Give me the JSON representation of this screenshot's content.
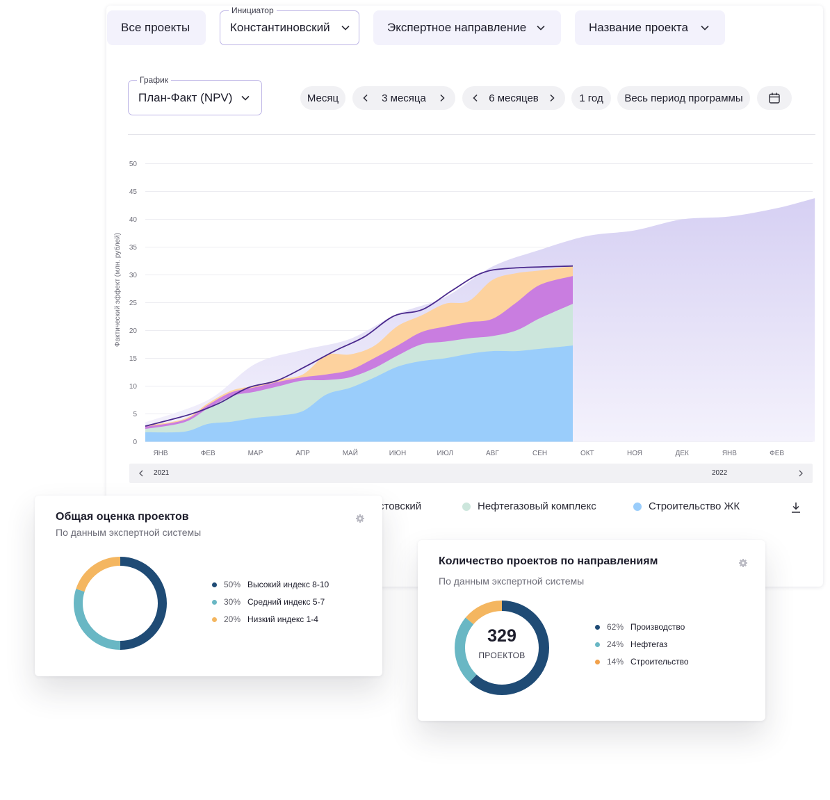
{
  "filters": {
    "all_projects": "Все проекты",
    "initiator_label": "Инициатор",
    "initiator_value": "Константиновский",
    "expert_direction": "Экспертное направление",
    "project_name": "Название проекта"
  },
  "graph_selector": {
    "label": "График",
    "value": "План-Факт (NPV)"
  },
  "period": {
    "month": "Месяц",
    "three_months": "3 месяца",
    "six_months": "6 месяцев",
    "one_year": "1 год",
    "whole_period": "Весь период программы"
  },
  "chart": {
    "ylabel": "Фактический эффект (млн. рублей)",
    "timeline_left": "2021",
    "timeline_right": "2022"
  },
  "legend": {
    "item1": "стовский",
    "item2": "Нефтегазовый комплекс",
    "item3": "Строительство ЖК"
  },
  "colors": {
    "construction": "#9acdfb",
    "oil_gas": "#cce6dc",
    "magenta": "#c97de0",
    "orange": "#fdd29e",
    "plan": "#dcd7f4",
    "fact_line": "#4b2a8e",
    "navy": "#1f4b75",
    "teal": "#69b7c4",
    "yellow": "#f4b660",
    "orange2": "#f2a14a"
  },
  "chart_data": {
    "type": "area",
    "ylabel": "Фактический эффект (млн. рублей)",
    "ylim": [
      0,
      50
    ],
    "yticks": [
      0,
      5,
      10,
      15,
      20,
      25,
      30,
      35,
      40,
      45,
      50
    ],
    "months": [
      "ЯНВ",
      "ФЕВ",
      "МАР",
      "АПР",
      "МАЙ",
      "ИЮН",
      "ИЮЛ",
      "АВГ",
      "СЕН",
      "ОКТ",
      "НОЯ",
      "ДЕК",
      "ЯНВ",
      "ФЕВ"
    ],
    "x": [
      0,
      0.5,
      1,
      1.5,
      2,
      2.5,
      3,
      3.5,
      4,
      4.5,
      5,
      5.5,
      6,
      6.5,
      7,
      7.5,
      8,
      8.5
    ],
    "series": [
      {
        "values": [
          1.7,
          1.8,
          3.2,
          3.6,
          4.3,
          4.7,
          5.5,
          8.5,
          9.7,
          11.5,
          13.5,
          14.5,
          15.0,
          15.8,
          16.3,
          16.3,
          16.7,
          17.3
        ]
      },
      {
        "values": [
          0.6,
          1.7,
          2.8,
          4.6,
          4.7,
          5.3,
          5.5,
          2.6,
          1.9,
          1.7,
          2.0,
          3.0,
          3.0,
          2.8,
          2.7,
          3.7,
          5.5,
          7.5
        ]
      },
      {
        "values": [
          0.4,
          0.4,
          0.6,
          0.7,
          0.8,
          0.8,
          0.6,
          1.0,
          1.3,
          1.8,
          1.8,
          2.2,
          2.7,
          2.9,
          3.1,
          5.0,
          6.0,
          5.0
        ]
      },
      {
        "values": [
          0.2,
          0.2,
          0.3,
          0.3,
          0.3,
          0.4,
          0.5,
          3.5,
          2.8,
          2.2,
          3.5,
          3.0,
          4.1,
          3.8,
          7.0,
          5.3,
          2.6,
          1.8
        ]
      }
    ],
    "plan_x": [
      0,
      1,
      2,
      3,
      4,
      5,
      6,
      7,
      8,
      9,
      10,
      11,
      12,
      13,
      13.8
    ],
    "plan_values": [
      3.5,
      7.5,
      14,
      16.5,
      18.5,
      23,
      26,
      31.5,
      34.5,
      37,
      38,
      40,
      40.5,
      42,
      43.8
    ],
    "fact_line": [
      2.8,
      4.9,
      6.9,
      9.7,
      11.0,
      13.6,
      16.4,
      18.9,
      22.6,
      23.8,
      27.2,
      30.3,
      31.2,
      31.6
    ]
  },
  "card1": {
    "title": "Общая оценка проектов",
    "subtitle": "По данным экспертной системы",
    "items": [
      {
        "pct": "50%",
        "label": "Высокий индекс 8-10",
        "value": 50
      },
      {
        "pct": "30%",
        "label": "Средний индекс 5-7",
        "value": 30
      },
      {
        "pct": "20%",
        "label": "Низкий индекс 1-4",
        "value": 20
      }
    ]
  },
  "card2": {
    "title": "Количество проектов по направлениям",
    "subtitle": "По данным экспертной системы",
    "total": "329",
    "total_label": "ПРОЕКТОВ",
    "items": [
      {
        "pct": "62%",
        "label": "Производство",
        "value": 62
      },
      {
        "pct": "24%",
        "label": "Нефтегаз",
        "value": 24
      },
      {
        "pct": "14%",
        "label": "Строительство",
        "value": 14
      }
    ]
  }
}
